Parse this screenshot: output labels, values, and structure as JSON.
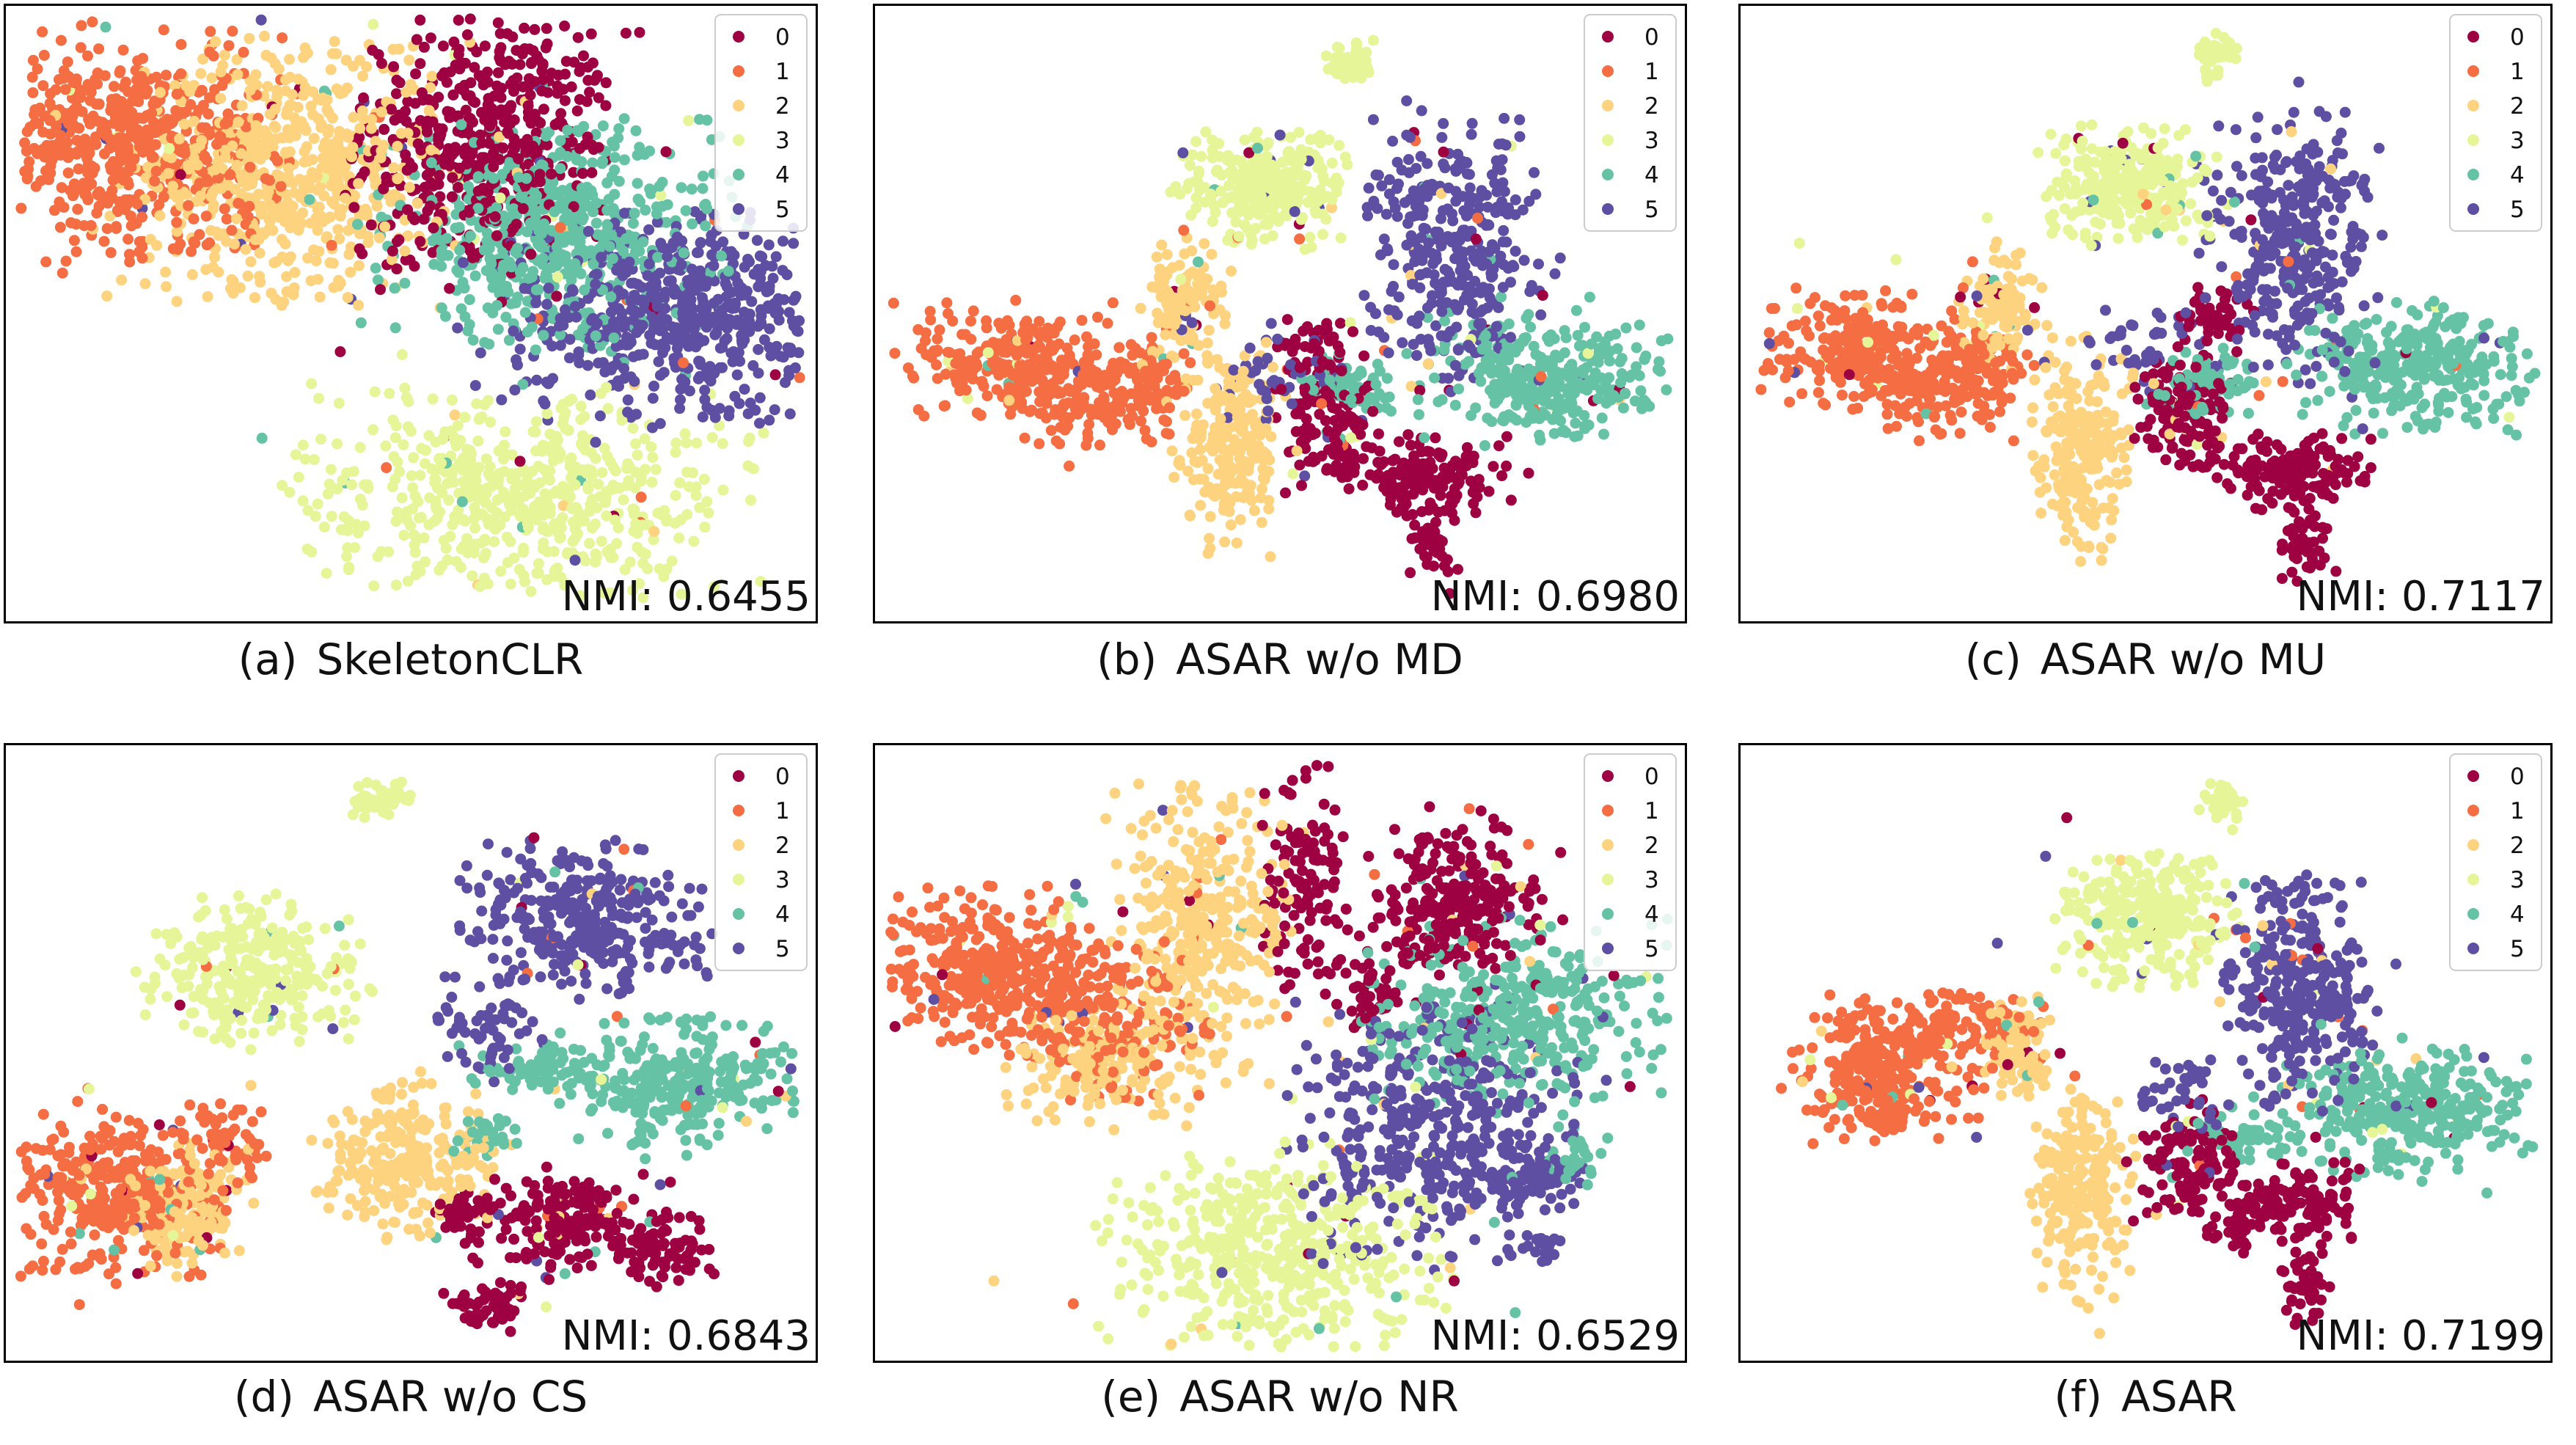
{
  "legend_classes": [
    "0",
    "1",
    "2",
    "3",
    "4",
    "5"
  ],
  "class_colors": [
    "#9e0142",
    "#f46d43",
    "#fdd37f",
    "#e6f598",
    "#66c2a5",
    "#5e4fa2"
  ],
  "chart_data": [
    {
      "type": "scatter",
      "panel_label": "(a)",
      "title": "SkeletonCLR",
      "nmi_text": "NMI: 0.6455",
      "legend_position": "top-right",
      "grid": false,
      "xlim": [
        0,
        100
      ],
      "ylim": [
        0,
        100
      ],
      "series": [
        {
          "name": "0",
          "clusters": [
            {
              "cx": 59,
              "cy": 78,
              "sx": 7.5,
              "sy": 11,
              "rot": -10,
              "n": 520
            }
          ]
        },
        {
          "name": "1",
          "clusters": [
            {
              "cx": 14,
              "cy": 78,
              "sx": 9.5,
              "sy": 8.5,
              "rot": 0,
              "n": 580
            }
          ]
        },
        {
          "name": "2",
          "clusters": [
            {
              "cx": 35,
              "cy": 74,
              "sx": 9,
              "sy": 10,
              "rot": 0,
              "n": 620
            }
          ]
        },
        {
          "name": "3",
          "clusters": [
            {
              "cx": 64,
              "cy": 20,
              "sx": 13,
              "sy": 8,
              "rot": 0,
              "n": 560
            }
          ]
        },
        {
          "name": "4",
          "clusters": [
            {
              "cx": 68,
              "cy": 63,
              "sx": 10,
              "sy": 8.5,
              "rot": 0,
              "n": 560
            }
          ]
        },
        {
          "name": "5",
          "clusters": [
            {
              "cx": 84,
              "cy": 50,
              "sx": 10,
              "sy": 8,
              "rot": 0,
              "n": 600
            }
          ]
        }
      ]
    },
    {
      "type": "scatter",
      "panel_label": "(b)",
      "title": "ASAR w/o MD",
      "nmi_text": "NMI: 0.6980",
      "legend_position": "top-right",
      "grid": false,
      "xlim": [
        0,
        100
      ],
      "ylim": [
        0,
        100
      ],
      "series": [
        {
          "name": "0",
          "clusters": [
            {
              "cx": 56,
              "cy": 32,
              "sx": 3,
              "sy": 5,
              "rot": 0,
              "n": 120
            },
            {
              "cx": 68,
              "cy": 23,
              "sx": 5,
              "sy": 3,
              "rot": 0,
              "n": 150
            },
            {
              "cx": 69,
              "cy": 11,
              "sx": 1.5,
              "sy": 3,
              "rot": 0,
              "n": 45
            },
            {
              "cx": 54,
              "cy": 45,
              "sx": 2.5,
              "sy": 2,
              "rot": 0,
              "n": 40
            }
          ]
        },
        {
          "name": "1",
          "clusters": [
            {
              "cx": 17,
              "cy": 42,
              "sx": 6,
              "sy": 4.5,
              "rot": 0,
              "n": 230
            },
            {
              "cx": 27,
              "cy": 36,
              "sx": 5,
              "sy": 4,
              "rot": 0,
              "n": 160
            },
            {
              "cx": 34,
              "cy": 40,
              "sx": 2,
              "sy": 2.5,
              "rot": 0,
              "n": 40
            }
          ]
        },
        {
          "name": "2",
          "clusters": [
            {
              "cx": 38,
              "cy": 52,
              "sx": 2.5,
              "sy": 5,
              "rot": 0,
              "n": 100
            },
            {
              "cx": 44,
              "cy": 28,
              "sx": 3,
              "sy": 8,
              "rot": 0,
              "n": 230
            }
          ]
        },
        {
          "name": "3",
          "clusters": [
            {
              "cx": 48,
              "cy": 71,
              "sx": 5,
              "sy": 4.5,
              "rot": 0,
              "n": 260
            },
            {
              "cx": 59,
              "cy": 92,
              "sx": 1.5,
              "sy": 2,
              "rot": 0,
              "n": 40
            }
          ]
        },
        {
          "name": "4",
          "clusters": [
            {
              "cx": 83,
              "cy": 40,
              "sx": 7,
              "sy": 5,
              "rot": 0,
              "n": 300
            },
            {
              "cx": 59,
              "cy": 38,
              "sx": 3,
              "sy": 2.5,
              "rot": 0,
              "n": 60
            }
          ]
        },
        {
          "name": "5",
          "clusters": [
            {
              "cx": 72,
              "cy": 60,
              "sx": 5,
              "sy": 10,
              "rot": 0,
              "n": 330
            },
            {
              "cx": 50,
              "cy": 40,
              "sx": 4,
              "sy": 4,
              "rot": 0,
              "n": 40
            }
          ]
        }
      ]
    },
    {
      "type": "scatter",
      "panel_label": "(c)",
      "title": "ASAR w/o MU",
      "nmi_text": "NMI: 0.7117",
      "legend_position": "top-right",
      "grid": false,
      "xlim": [
        0,
        100
      ],
      "ylim": [
        0,
        100
      ],
      "series": [
        {
          "name": "0",
          "clusters": [
            {
              "cx": 55,
              "cy": 35,
              "sx": 3,
              "sy": 5,
              "rot": 0,
              "n": 120
            },
            {
              "cx": 68,
              "cy": 24,
              "sx": 5,
              "sy": 3,
              "rot": 0,
              "n": 150
            },
            {
              "cx": 70,
              "cy": 12,
              "sx": 1.5,
              "sy": 3,
              "rot": 0,
              "n": 45
            },
            {
              "cx": 58,
              "cy": 50,
              "sx": 2.5,
              "sy": 2,
              "rot": 0,
              "n": 40
            }
          ]
        },
        {
          "name": "1",
          "clusters": [
            {
              "cx": 15,
              "cy": 44,
              "sx": 6,
              "sy": 4.5,
              "rot": 0,
              "n": 230
            },
            {
              "cx": 24,
              "cy": 38,
              "sx": 5,
              "sy": 4,
              "rot": 0,
              "n": 160
            },
            {
              "cx": 30,
              "cy": 42,
              "sx": 2,
              "sy": 2.5,
              "rot": 0,
              "n": 40
            }
          ]
        },
        {
          "name": "2",
          "clusters": [
            {
              "cx": 32,
              "cy": 51,
              "sx": 2.5,
              "sy": 5,
              "rot": 0,
              "n": 100
            },
            {
              "cx": 42,
              "cy": 28,
              "sx": 3,
              "sy": 8,
              "rot": 0,
              "n": 230
            }
          ]
        },
        {
          "name": "3",
          "clusters": [
            {
              "cx": 48,
              "cy": 71,
              "sx": 5,
              "sy": 4.5,
              "rot": 0,
              "n": 260
            },
            {
              "cx": 59,
              "cy": 93,
              "sx": 1.5,
              "sy": 2,
              "rot": 0,
              "n": 40
            }
          ]
        },
        {
          "name": "4",
          "clusters": [
            {
              "cx": 84,
              "cy": 41,
              "sx": 7,
              "sy": 5,
              "rot": 0,
              "n": 300
            },
            {
              "cx": 58,
              "cy": 39,
              "sx": 3,
              "sy": 2.5,
              "rot": 0,
              "n": 60
            }
          ]
        },
        {
          "name": "5",
          "clusters": [
            {
              "cx": 68,
              "cy": 61,
              "sx": 5,
              "sy": 10,
              "rot": 0,
              "n": 330
            },
            {
              "cx": 49,
              "cy": 45,
              "sx": 4,
              "sy": 4,
              "rot": 0,
              "n": 40
            }
          ]
        }
      ]
    },
    {
      "type": "scatter",
      "panel_label": "(d)",
      "title": "ASAR w/o CS",
      "nmi_text": "NMI: 0.6843",
      "legend_position": "top-right",
      "grid": false,
      "xlim": [
        0,
        100
      ],
      "ylim": [
        0,
        100
      ],
      "series": [
        {
          "name": "0",
          "clusters": [
            {
              "cx": 69,
              "cy": 22,
              "sx": 5,
              "sy": 3.5,
              "rot": 0,
              "n": 170
            },
            {
              "cx": 82,
              "cy": 17,
              "sx": 3,
              "sy": 3,
              "rot": 0,
              "n": 80
            },
            {
              "cx": 60,
              "cy": 8,
              "sx": 2.5,
              "sy": 2,
              "rot": 0,
              "n": 55
            },
            {
              "cx": 56,
              "cy": 23,
              "sx": 2,
              "sy": 2,
              "rot": 0,
              "n": 40
            }
          ]
        },
        {
          "name": "1",
          "clusters": [
            {
              "cx": 12,
              "cy": 27,
              "sx": 7,
              "sy": 7,
              "rot": 0,
              "n": 330
            },
            {
              "cx": 27,
              "cy": 35,
              "sx": 3,
              "sy": 3,
              "rot": 0,
              "n": 60
            }
          ]
        },
        {
          "name": "2",
          "clusters": [
            {
              "cx": 22,
              "cy": 24,
              "sx": 3.5,
              "sy": 5,
              "rot": 0,
              "n": 150
            },
            {
              "cx": 49,
              "cy": 32,
              "sx": 5,
              "sy": 6,
              "rot": 0,
              "n": 260
            }
          ]
        },
        {
          "name": "3",
          "clusters": [
            {
              "cx": 30,
              "cy": 63,
              "sx": 6,
              "sy": 6,
              "rot": 0,
              "n": 280
            },
            {
              "cx": 47,
              "cy": 92,
              "sx": 2,
              "sy": 1.5,
              "rot": 0,
              "n": 40
            }
          ]
        },
        {
          "name": "4",
          "clusters": [
            {
              "cx": 84,
              "cy": 45,
              "sx": 7,
              "sy": 5,
              "rot": 0,
              "n": 280
            },
            {
              "cx": 66,
              "cy": 48,
              "sx": 4,
              "sy": 2,
              "rot": 0,
              "n": 70
            },
            {
              "cx": 60,
              "cy": 37,
              "sx": 2,
              "sy": 2,
              "rot": 0,
              "n": 30
            }
          ]
        },
        {
          "name": "5",
          "clusters": [
            {
              "cx": 72,
              "cy": 72,
              "sx": 7,
              "sy": 6,
              "rot": 0,
              "n": 320
            },
            {
              "cx": 60,
              "cy": 55,
              "sx": 3,
              "sy": 4,
              "rot": 0,
              "n": 60
            }
          ]
        }
      ]
    },
    {
      "type": "scatter",
      "panel_label": "(e)",
      "title": "ASAR w/o NR",
      "nmi_text": "NMI: 0.6529",
      "legend_position": "top-right",
      "grid": false,
      "xlim": [
        0,
        100
      ],
      "ylim": [
        0,
        100
      ],
      "series": [
        {
          "name": "0",
          "clusters": [
            {
              "cx": 72,
              "cy": 75,
              "sx": 5,
              "sy": 7,
              "rot": 0,
              "n": 250
            },
            {
              "cx": 53,
              "cy": 78,
              "sx": 2.5,
              "sy": 9,
              "rot": 0,
              "n": 120
            },
            {
              "cx": 61,
              "cy": 60,
              "sx": 2,
              "sy": 3,
              "rot": 0,
              "n": 40
            }
          ]
        },
        {
          "name": "1",
          "clusters": [
            {
              "cx": 14,
              "cy": 64,
              "sx": 7,
              "sy": 6,
              "rot": 0,
              "n": 330
            },
            {
              "cx": 28,
              "cy": 56,
              "sx": 6,
              "sy": 6,
              "rot": 0,
              "n": 200
            }
          ]
        },
        {
          "name": "2",
          "clusters": [
            {
              "cx": 40,
              "cy": 70,
              "sx": 5,
              "sy": 11,
              "rot": 0,
              "n": 360
            },
            {
              "cx": 28,
              "cy": 48,
              "sx": 6,
              "sy": 5,
              "rot": 0,
              "n": 160
            }
          ]
        },
        {
          "name": "3",
          "clusters": [
            {
              "cx": 49,
              "cy": 17,
              "sx": 10,
              "sy": 8,
              "rot": 0,
              "n": 480
            }
          ]
        },
        {
          "name": "4",
          "clusters": [
            {
              "cx": 80,
              "cy": 57,
              "sx": 9,
              "sy": 7,
              "rot": 0,
              "n": 380
            },
            {
              "cx": 87,
              "cy": 33,
              "sx": 2,
              "sy": 3,
              "rot": 0,
              "n": 30
            }
          ]
        },
        {
          "name": "5",
          "clusters": [
            {
              "cx": 69,
              "cy": 37,
              "sx": 8,
              "sy": 10,
              "rot": 0,
              "n": 440
            },
            {
              "cx": 82,
              "cy": 30,
              "sx": 3,
              "sy": 3,
              "rot": 0,
              "n": 70
            },
            {
              "cx": 83,
              "cy": 18,
              "sx": 1.2,
              "sy": 1.2,
              "rot": 0,
              "n": 20
            }
          ]
        }
      ]
    },
    {
      "type": "scatter",
      "panel_label": "(f)",
      "title": "ASAR",
      "nmi_text": "NMI: 0.7199",
      "legend_position": "top-right",
      "grid": false,
      "xlim": [
        0,
        100
      ],
      "ylim": [
        0,
        100
      ],
      "series": [
        {
          "name": "0",
          "clusters": [
            {
              "cx": 55,
              "cy": 32,
              "sx": 3,
              "sy": 4.5,
              "rot": 0,
              "n": 120
            },
            {
              "cx": 68,
              "cy": 25,
              "sx": 4,
              "sy": 3,
              "rot": 0,
              "n": 140
            },
            {
              "cx": 70,
              "cy": 11,
              "sx": 1.5,
              "sy": 3,
              "rot": 0,
              "n": 45
            },
            {
              "cx": 61,
              "cy": 20,
              "sx": 1.5,
              "sy": 1.5,
              "rot": 0,
              "n": 25
            }
          ]
        },
        {
          "name": "1",
          "clusters": [
            {
              "cx": 17,
              "cy": 46,
              "sx": 6,
              "sy": 4.5,
              "rot": 0,
              "n": 230
            },
            {
              "cx": 24,
              "cy": 55,
              "sx": 6,
              "sy": 2.5,
              "rot": 0,
              "n": 120
            },
            {
              "cx": 18,
              "cy": 39,
              "sx": 2,
              "sy": 1.5,
              "rot": 0,
              "n": 25
            }
          ]
        },
        {
          "name": "2",
          "clusters": [
            {
              "cx": 34,
              "cy": 50,
              "sx": 2.5,
              "sy": 4,
              "rot": 0,
              "n": 90
            },
            {
              "cx": 42,
              "cy": 26,
              "sx": 3,
              "sy": 8,
              "rot": 0,
              "n": 230
            }
          ]
        },
        {
          "name": "3",
          "clusters": [
            {
              "cx": 50,
              "cy": 72,
              "sx": 5,
              "sy": 5,
              "rot": 0,
              "n": 270
            },
            {
              "cx": 60,
              "cy": 92,
              "sx": 1.5,
              "sy": 1.5,
              "rot": 0,
              "n": 40
            }
          ]
        },
        {
          "name": "4",
          "clusters": [
            {
              "cx": 83,
              "cy": 40,
              "sx": 7,
              "sy": 5,
              "rot": 0,
              "n": 300
            },
            {
              "cx": 62,
              "cy": 36,
              "sx": 3,
              "sy": 2,
              "rot": 0,
              "n": 50
            }
          ]
        },
        {
          "name": "5",
          "clusters": [
            {
              "cx": 69,
              "cy": 60,
              "sx": 4.5,
              "sy": 9,
              "rot": 0,
              "n": 310
            },
            {
              "cx": 55,
              "cy": 44,
              "sx": 2.5,
              "sy": 3,
              "rot": 0,
              "n": 40
            }
          ]
        }
      ]
    }
  ]
}
